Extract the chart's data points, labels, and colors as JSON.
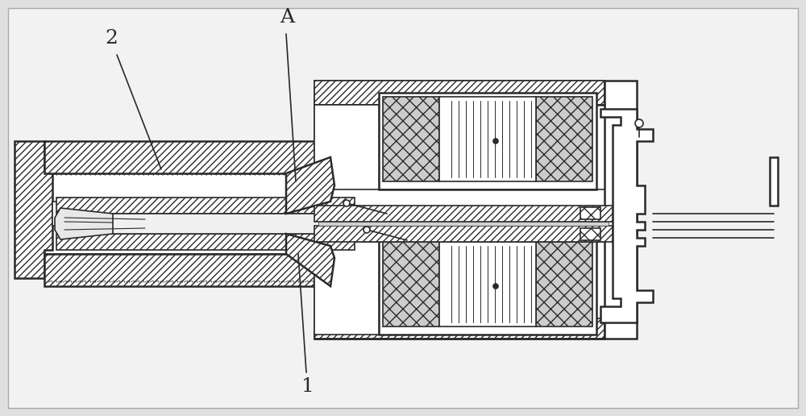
{
  "bg_color": "#e8e8e8",
  "line_color": "#2a2a2a",
  "fig_bg": "#e0e0e0",
  "figsize": [
    10.0,
    5.16
  ],
  "dpi": 100,
  "lw_main": 1.2,
  "lw_thick": 1.8
}
